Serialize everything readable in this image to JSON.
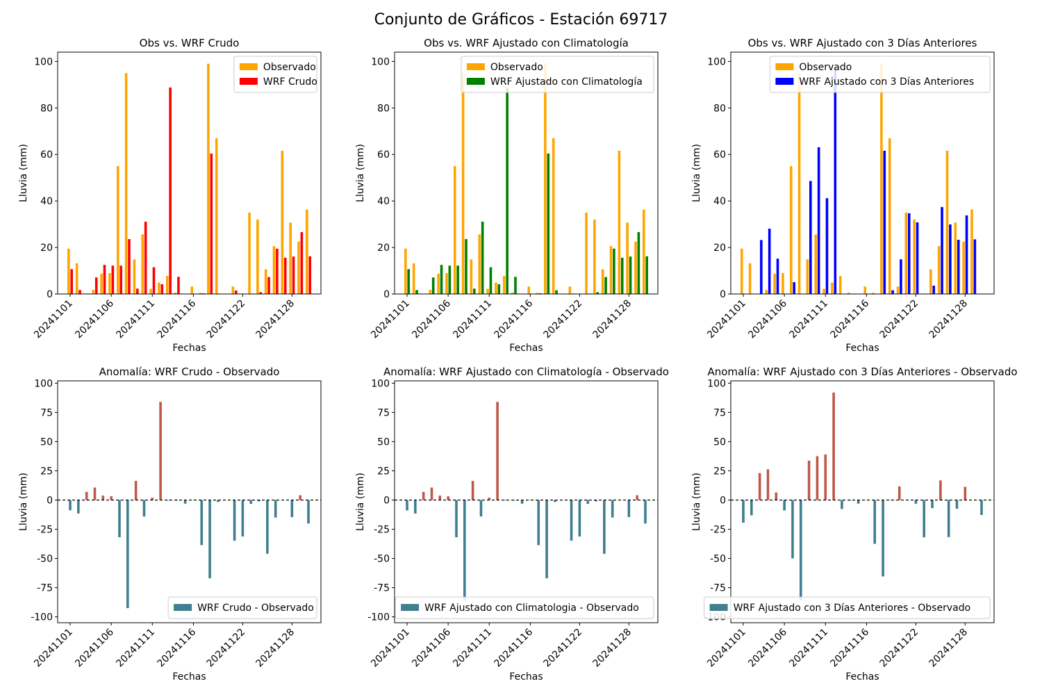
{
  "suptitle": "Conjunto de Gráficos - Estación 69717",
  "colors": {
    "observado": "#ffa500",
    "wrf_crudo": "#ff0000",
    "wrf_clim": "#008000",
    "wrf_3dias": "#0000ff",
    "anomaly_positive": "#c0584a",
    "anomaly_negative": "#3f7f8f"
  },
  "chart_data": [
    {
      "type": "bar",
      "title": "Obs vs. WRF Crudo",
      "xlabel": "Fechas",
      "ylabel": "Lluvia (mm)",
      "categories": [
        "20241101",
        "20241102",
        "20241103",
        "20241104",
        "20241105",
        "20241106",
        "20241107",
        "20241108",
        "20241109",
        "20241110",
        "20241111",
        "20241112",
        "20241113",
        "20241114",
        "20241115",
        "20241116",
        "20241117",
        "20241118",
        "20241119",
        "20241120",
        "20241121",
        "20241122",
        "20241123",
        "20241124",
        "20241125",
        "20241126",
        "20241127",
        "20241128",
        "20241129",
        "20241130"
      ],
      "xtick_labels": [
        "20241101",
        "20241106",
        "20241111",
        "20241116",
        "20241122",
        "20241128"
      ],
      "ylim": [
        0,
        104
      ],
      "yticks": [
        0,
        20,
        40,
        60,
        80,
        100
      ],
      "legend_position": "top-right",
      "series": [
        {
          "name": "Observado",
          "values": [
            19.5,
            13.2,
            0.1,
            1.8,
            8.7,
            9.0,
            55.0,
            95.0,
            14.9,
            25.6,
            2.2,
            4.9,
            7.8,
            0.6,
            0.1,
            3.2,
            0.5,
            99.0,
            67.0,
            0.1,
            3.2,
            0.1,
            35.0,
            32.0,
            10.6,
            20.6,
            61.6,
            30.7,
            22.5,
            36.3
          ]
        },
        {
          "name": "WRF Crudo",
          "values": [
            10.7,
            1.7,
            0.1,
            7.1,
            12.5,
            12.2,
            12.2,
            23.6,
            2.3,
            31.1,
            11.5,
            4.2,
            88.8,
            7.4,
            0.1,
            0.1,
            0.3,
            60.4,
            0.2,
            0.1,
            1.5,
            0.1,
            0.2,
            0.8,
            7.3,
            19.5,
            15.6,
            16.1,
            26.6,
            16.2
          ]
        }
      ]
    },
    {
      "type": "bar",
      "title": "Obs vs. WRF Ajustado con Climatología",
      "xlabel": "Fechas",
      "ylabel": "Lluvia (mm)",
      "categories": [
        "20241101",
        "20241102",
        "20241103",
        "20241104",
        "20241105",
        "20241106",
        "20241107",
        "20241108",
        "20241109",
        "20241110",
        "20241111",
        "20241112",
        "20241113",
        "20241114",
        "20241115",
        "20241116",
        "20241117",
        "20241118",
        "20241119",
        "20241120",
        "20241121",
        "20241122",
        "20241123",
        "20241124",
        "20241125",
        "20241126",
        "20241127",
        "20241128",
        "20241129",
        "20241130"
      ],
      "xtick_labels": [
        "20241101",
        "20241106",
        "20241111",
        "20241116",
        "20241122",
        "20241128"
      ],
      "ylim": [
        0,
        104
      ],
      "yticks": [
        0,
        20,
        40,
        60,
        80,
        100
      ],
      "legend_position": "top-right",
      "series": [
        {
          "name": "Observado",
          "values": [
            19.5,
            13.2,
            0.1,
            1.8,
            8.7,
            9.0,
            55.0,
            95.0,
            14.9,
            25.6,
            2.2,
            4.9,
            7.8,
            0.6,
            0.1,
            3.2,
            0.5,
            99.0,
            67.0,
            0.1,
            3.2,
            0.1,
            35.0,
            32.0,
            10.6,
            20.6,
            61.6,
            30.7,
            22.5,
            36.3
          ]
        },
        {
          "name": "WRF Ajustado con Climatología",
          "values": [
            10.7,
            1.7,
            0.1,
            7.1,
            12.5,
            12.2,
            12.2,
            23.6,
            2.3,
            31.1,
            11.5,
            4.2,
            88.8,
            7.4,
            0.1,
            0.1,
            0.3,
            60.4,
            1.6,
            0.1,
            0.2,
            0.1,
            0.2,
            0.8,
            7.3,
            19.5,
            15.6,
            16.1,
            26.6,
            16.2
          ]
        }
      ]
    },
    {
      "type": "bar",
      "title": "Obs vs. WRF Ajustado con 3 Días Anteriores",
      "xlabel": "Fechas",
      "ylabel": "Lluvia (mm)",
      "categories": [
        "20241101",
        "20241102",
        "20241103",
        "20241104",
        "20241105",
        "20241106",
        "20241107",
        "20241108",
        "20241109",
        "20241110",
        "20241111",
        "20241112",
        "20241113",
        "20241114",
        "20241115",
        "20241116",
        "20241117",
        "20241118",
        "20241119",
        "20241120",
        "20241121",
        "20241122",
        "20241123",
        "20241124",
        "20241125",
        "20241126",
        "20241127",
        "20241128",
        "20241129",
        "20241130"
      ],
      "xtick_labels": [
        "20241101",
        "20241106",
        "20241111",
        "20241116",
        "20241122",
        "20241128"
      ],
      "ylim": [
        0,
        104
      ],
      "yticks": [
        0,
        20,
        40,
        60,
        80,
        100
      ],
      "legend_position": "top-right",
      "series": [
        {
          "name": "Observado",
          "values": [
            19.5,
            13.2,
            0.1,
            1.8,
            8.7,
            9.0,
            55.0,
            95.0,
            14.9,
            25.6,
            2.2,
            4.9,
            7.8,
            0.6,
            0.1,
            3.2,
            0.5,
            99.0,
            67.0,
            3.2,
            35.0,
            32.0,
            0.1,
            10.6,
            20.6,
            61.6,
            30.7,
            22.5,
            36.3,
            0.1
          ]
        },
        {
          "name": "WRF Ajustado con 3 Días Anteriores",
          "values": [
            0.1,
            0.1,
            23.2,
            28.1,
            15.2,
            0.1,
            5.1,
            0.1,
            48.6,
            63.1,
            41.2,
            96.9,
            0.1,
            0.1,
            0.1,
            0.1,
            0.1,
            61.6,
            1.6,
            14.9,
            34.7,
            30.8,
            0.1,
            3.6,
            37.4,
            29.9,
            23.3,
            33.8,
            23.5,
            0.1
          ]
        }
      ]
    },
    {
      "type": "bar",
      "title": "Anomalía: WRF Crudo - Observado",
      "xlabel": "Fechas",
      "ylabel": "Lluvia (mm)",
      "categories": [
        "20241101",
        "20241102",
        "20241103",
        "20241104",
        "20241105",
        "20241106",
        "20241107",
        "20241108",
        "20241109",
        "20241110",
        "20241111",
        "20241112",
        "20241113",
        "20241114",
        "20241115",
        "20241116",
        "20241117",
        "20241118",
        "20241119",
        "20241120",
        "20241121",
        "20241122",
        "20241123",
        "20241124",
        "20241125",
        "20241126",
        "20241127",
        "20241128",
        "20241129",
        "20241130"
      ],
      "xtick_labels": [
        "20241101",
        "20241106",
        "20241111",
        "20241116",
        "20241122",
        "20241128"
      ],
      "ylim": [
        -105,
        102
      ],
      "yticks": [
        -100,
        -75,
        -50,
        -25,
        0,
        25,
        50,
        75,
        100
      ],
      "zero_line": "dashed",
      "legend_position": "lower-right",
      "series": [
        {
          "name": "WRF Crudo - Observado",
          "values": [
            -8.8,
            -11.5,
            7.0,
            10.7,
            3.8,
            3.2,
            -31.9,
            -92.5,
            16.4,
            -14.1,
            2.0,
            84.0,
            -0.4,
            -0.5,
            -3.1,
            -0.2,
            -38.6,
            -67.0,
            -1.7,
            0.0,
            -34.8,
            -31.2,
            -3.3,
            -1.1,
            -46.0,
            -15.0,
            0.0,
            -14.6,
            4.1,
            -20.1
          ]
        }
      ]
    },
    {
      "type": "bar",
      "title": "Anomalía: WRF Ajustado con Climatología - Observado",
      "xlabel": "Fechas",
      "ylabel": "Lluvia (mm)",
      "categories": [
        "20241101",
        "20241102",
        "20241103",
        "20241104",
        "20241105",
        "20241106",
        "20241107",
        "20241108",
        "20241109",
        "20241110",
        "20241111",
        "20241112",
        "20241113",
        "20241114",
        "20241115",
        "20241116",
        "20241117",
        "20241118",
        "20241119",
        "20241120",
        "20241121",
        "20241122",
        "20241123",
        "20241124",
        "20241125",
        "20241126",
        "20241127",
        "20241128",
        "20241129",
        "20241130"
      ],
      "xtick_labels": [
        "20241101",
        "20241106",
        "20241111",
        "20241116",
        "20241122",
        "20241128"
      ],
      "ylim": [
        -105,
        102
      ],
      "yticks": [
        -100,
        -75,
        -50,
        -25,
        0,
        25,
        50,
        75,
        100
      ],
      "zero_line": "dashed",
      "legend_position": "lower-right",
      "series": [
        {
          "name": "WRF Ajustado con Climatologia - Observado",
          "values": [
            -8.8,
            -11.5,
            7.0,
            10.7,
            3.8,
            3.2,
            -31.9,
            -86.0,
            16.4,
            -14.1,
            2.0,
            84.0,
            -0.4,
            -0.5,
            -3.1,
            -0.2,
            -38.6,
            -67.0,
            -1.7,
            0.0,
            -34.8,
            -31.2,
            -3.3,
            -1.1,
            -46.0,
            -15.0,
            0.0,
            -14.6,
            4.1,
            -20.1
          ]
        }
      ]
    },
    {
      "type": "bar",
      "title": "Anomalía: WRF Ajustado con 3 Días Anteriores - Observado",
      "xlabel": "Fechas",
      "ylabel": "Lluvia (mm)",
      "categories": [
        "20241101",
        "20241102",
        "20241103",
        "20241104",
        "20241105",
        "20241106",
        "20241107",
        "20241108",
        "20241109",
        "20241110",
        "20241111",
        "20241112",
        "20241113",
        "20241114",
        "20241115",
        "20241116",
        "20241117",
        "20241118",
        "20241119",
        "20241120",
        "20241121",
        "20241122",
        "20241123",
        "20241124",
        "20241125",
        "20241126",
        "20241127",
        "20241128",
        "20241129",
        "20241130"
      ],
      "xtick_labels": [
        "20241101",
        "20241106",
        "20241111",
        "20241116",
        "20241122",
        "20241128"
      ],
      "ylim": [
        -105,
        102
      ],
      "yticks": [
        -100,
        -75,
        -50,
        -25,
        0,
        25,
        50,
        75,
        100
      ],
      "zero_line": "dashed",
      "legend_position": "lower-right",
      "series": [
        {
          "name": "WRF Ajustado con 3 Días Anteriores - Observado",
          "values": [
            -19.4,
            -13.1,
            23.1,
            26.3,
            6.5,
            -8.9,
            -49.9,
            -86.0,
            33.7,
            37.5,
            39.0,
            92.0,
            -7.7,
            -0.5,
            -3.1,
            -0.1,
            -37.5,
            -65.4,
            -0.3,
            11.7,
            -0.3,
            -3.2,
            -31.9,
            -6.9,
            16.8,
            -31.7,
            -7.4,
            11.3,
            0.0,
            -12.8
          ]
        }
      ]
    }
  ]
}
